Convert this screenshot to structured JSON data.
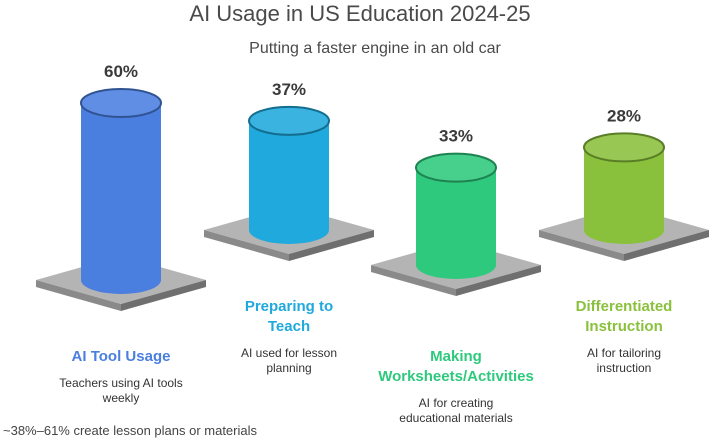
{
  "chart_data": {
    "type": "bar",
    "title": "AI Usage in US Education 2024-25",
    "subtitle": "Putting a faster engine in an old car",
    "categories": [
      {
        "name": "AI Tool Usage",
        "value": 60,
        "label": "60%",
        "description": "Teachers using AI tools weekly",
        "color": "#4a7fe0"
      },
      {
        "name": "Preparing to Teach",
        "value": 37,
        "label": "37%",
        "description": "AI used for lesson planning",
        "color": "#1fa9dd"
      },
      {
        "name": "Making Worksheets/Activities",
        "value": 33,
        "label": "33%",
        "description": "AI for creating educational materials",
        "color": "#2ec97c"
      },
      {
        "name": "Differentiated Instruction",
        "value": 28,
        "label": "28%",
        "description": "AI for tailoring instruction",
        "color": "#8ac13c"
      }
    ],
    "footnote": "~38%–61% create lesson plans or materials"
  }
}
